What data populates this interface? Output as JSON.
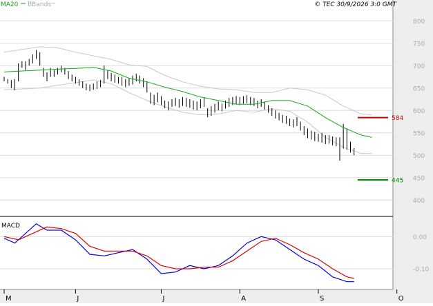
{
  "header": {
    "ma_label": "MA20",
    "bb_label": "BBands",
    "copyright": "© TEC 30/9/2026 3:0 GMT"
  },
  "colors": {
    "ma20": "#11aa11",
    "bbands": "#c8c8c8",
    "price": "#000000",
    "macd_line": "#0000dd",
    "signal_line": "#dd0000",
    "resistance": "#cc0000",
    "support": "#008800",
    "axis_panel": "#eeeeee",
    "grid": "#dddddd"
  },
  "chart_data": [
    {
      "type": "line",
      "panel": "price",
      "title": "",
      "ylim": [
        385,
        825
      ],
      "yticks": [
        "400",
        "450",
        "500",
        "550",
        "600",
        "650",
        "700",
        "750",
        "800"
      ],
      "x_month_labels": [
        "M",
        "J",
        "J",
        "A",
        "S",
        "O"
      ],
      "x_month_positions": [
        0,
        20,
        44,
        66,
        88,
        110
      ],
      "levels": [
        {
          "label": "584",
          "value": 584,
          "color": "resistance"
        },
        {
          "label": "445",
          "value": 445,
          "color": "support"
        }
      ],
      "series": [
        {
          "name": "MA20",
          "color": "ma20",
          "values": [
            [
              0,
              686
            ],
            [
              5,
              688
            ],
            [
              10,
              690
            ],
            [
              15,
              692
            ],
            [
              20,
              694
            ],
            [
              25,
              696
            ],
            [
              30,
              688
            ],
            [
              35,
              672
            ],
            [
              40,
              664
            ],
            [
              45,
              652
            ],
            [
              50,
              642
            ],
            [
              55,
              630
            ],
            [
              60,
              622
            ],
            [
              65,
              614
            ],
            [
              70,
              614
            ],
            [
              75,
              622
            ],
            [
              80,
              622
            ],
            [
              85,
              610
            ],
            [
              90,
              584
            ],
            [
              95,
              562
            ],
            [
              100,
              545
            ],
            [
              103,
              540
            ]
          ]
        },
        {
          "name": "BBands upper",
          "color": "bbands",
          "values": [
            [
              0,
              730
            ],
            [
              5,
              736
            ],
            [
              10,
              742
            ],
            [
              15,
              740
            ],
            [
              20,
              730
            ],
            [
              25,
              722
            ],
            [
              30,
              714
            ],
            [
              35,
              702
            ],
            [
              40,
              698
            ],
            [
              45,
              678
            ],
            [
              50,
              664
            ],
            [
              55,
              654
            ],
            [
              60,
              648
            ],
            [
              65,
              646
            ],
            [
              70,
              640
            ],
            [
              75,
              640
            ],
            [
              80,
              650
            ],
            [
              85,
              646
            ],
            [
              90,
              634
            ],
            [
              95,
              610
            ],
            [
              100,
              592
            ],
            [
              103,
              590
            ]
          ]
        },
        {
          "name": "BBands lower",
          "color": "bbands",
          "values": [
            [
              0,
              646
            ],
            [
              5,
              648
            ],
            [
              10,
              650
            ],
            [
              15,
              656
            ],
            [
              20,
              662
            ],
            [
              25,
              668
            ],
            [
              30,
              660
            ],
            [
              35,
              640
            ],
            [
              40,
              622
            ],
            [
              45,
              608
            ],
            [
              50,
              596
            ],
            [
              55,
              590
            ],
            [
              60,
              592
            ],
            [
              65,
              600
            ],
            [
              70,
              596
            ],
            [
              75,
              604
            ],
            [
              80,
              598
            ],
            [
              85,
              574
            ],
            [
              90,
              540
            ],
            [
              95,
              518
            ],
            [
              100,
              504
            ],
            [
              103,
              504
            ]
          ]
        }
      ],
      "ohlc": [
        [
          0,
          675,
          665
        ],
        [
          1,
          670,
          660
        ],
        [
          2,
          668,
          650
        ],
        [
          3,
          670,
          645
        ],
        [
          4,
          705,
          665
        ],
        [
          5,
          710,
          695
        ],
        [
          6,
          710,
          690
        ],
        [
          7,
          715,
          700
        ],
        [
          8,
          725,
          705
        ],
        [
          9,
          735,
          715
        ],
        [
          10,
          730,
          700
        ],
        [
          11,
          695,
          675
        ],
        [
          12,
          685,
          665
        ],
        [
          13,
          695,
          675
        ],
        [
          14,
          690,
          675
        ],
        [
          15,
          695,
          680
        ],
        [
          16,
          700,
          685
        ],
        [
          17,
          695,
          680
        ],
        [
          18,
          688,
          670
        ],
        [
          19,
          680,
          665
        ],
        [
          20,
          675,
          660
        ],
        [
          21,
          670,
          655
        ],
        [
          22,
          665,
          650
        ],
        [
          23,
          660,
          645
        ],
        [
          24,
          658,
          643
        ],
        [
          25,
          660,
          646
        ],
        [
          26,
          665,
          648
        ],
        [
          27,
          668,
          652
        ],
        [
          28,
          700,
          660
        ],
        [
          29,
          690,
          670
        ],
        [
          30,
          684,
          665
        ],
        [
          31,
          680,
          662
        ],
        [
          32,
          675,
          660
        ],
        [
          33,
          675,
          655
        ],
        [
          34,
          670,
          652
        ],
        [
          35,
          672,
          655
        ],
        [
          36,
          678,
          658
        ],
        [
          37,
          682,
          665
        ],
        [
          38,
          678,
          660
        ],
        [
          39,
          672,
          652
        ],
        [
          40,
          665,
          640
        ],
        [
          41,
          640,
          615
        ],
        [
          42,
          635,
          612
        ],
        [
          43,
          640,
          618
        ],
        [
          44,
          632,
          612
        ],
        [
          45,
          622,
          605
        ],
        [
          46,
          620,
          600
        ],
        [
          47,
          625,
          608
        ],
        [
          48,
          628,
          610
        ],
        [
          49,
          625,
          606
        ],
        [
          50,
          630,
          610
        ],
        [
          51,
          628,
          608
        ],
        [
          52,
          625,
          606
        ],
        [
          53,
          622,
          602
        ],
        [
          54,
          620,
          600
        ],
        [
          55,
          625,
          605
        ],
        [
          56,
          630,
          608
        ],
        [
          57,
          605,
          585
        ],
        [
          58,
          610,
          588
        ],
        [
          59,
          615,
          595
        ],
        [
          60,
          620,
          600
        ],
        [
          61,
          615,
          598
        ],
        [
          62,
          622,
          604
        ],
        [
          63,
          628,
          608
        ],
        [
          64,
          630,
          612
        ],
        [
          65,
          632,
          614
        ],
        [
          66,
          630,
          612
        ],
        [
          67,
          632,
          615
        ],
        [
          68,
          634,
          616
        ],
        [
          69,
          630,
          612
        ],
        [
          70,
          628,
          610
        ],
        [
          71,
          622,
          605
        ],
        [
          72,
          625,
          608
        ],
        [
          73,
          620,
          602
        ],
        [
          74,
          612,
          595
        ],
        [
          75,
          605,
          588
        ],
        [
          76,
          600,
          582
        ],
        [
          77,
          595,
          578
        ],
        [
          78,
          590,
          572
        ],
        [
          79,
          588,
          570
        ],
        [
          80,
          582,
          565
        ],
        [
          81,
          580,
          562
        ],
        [
          82,
          585,
          565
        ],
        [
          83,
          575,
          555
        ],
        [
          84,
          565,
          545
        ],
        [
          85,
          560,
          538
        ],
        [
          86,
          555,
          535
        ],
        [
          87,
          552,
          532
        ],
        [
          88,
          548,
          530
        ],
        [
          89,
          550,
          528
        ],
        [
          90,
          545,
          525
        ],
        [
          91,
          545,
          526
        ],
        [
          92,
          542,
          522
        ],
        [
          93,
          540,
          520
        ],
        [
          94,
          540,
          488
        ],
        [
          95,
          570,
          515
        ],
        [
          96,
          560,
          512
        ],
        [
          97,
          530,
          506
        ],
        [
          98,
          516,
          500
        ]
      ]
    },
    {
      "type": "line",
      "panel": "macd",
      "title": "MACD",
      "ylim": [
        -0.16,
        0.05
      ],
      "yticks": [
        "0.00",
        "-0.10"
      ],
      "ytick_values": [
        0.0,
        -0.1
      ],
      "series": [
        {
          "name": "MACD",
          "color": "macd_line",
          "values": [
            [
              0,
              -0.005
            ],
            [
              3,
              -0.02
            ],
            [
              6,
              0.01
            ],
            [
              9,
              0.04
            ],
            [
              12,
              0.02
            ],
            [
              16,
              0.02
            ],
            [
              20,
              -0.01
            ],
            [
              24,
              -0.055
            ],
            [
              28,
              -0.06
            ],
            [
              32,
              -0.05
            ],
            [
              36,
              -0.04
            ],
            [
              40,
              -0.07
            ],
            [
              44,
              -0.115
            ],
            [
              48,
              -0.11
            ],
            [
              52,
              -0.09
            ],
            [
              56,
              -0.1
            ],
            [
              60,
              -0.09
            ],
            [
              64,
              -0.06
            ],
            [
              68,
              -0.02
            ],
            [
              72,
              0.0
            ],
            [
              76,
              -0.01
            ],
            [
              80,
              -0.04
            ],
            [
              84,
              -0.07
            ],
            [
              88,
              -0.09
            ],
            [
              92,
              -0.125
            ],
            [
              96,
              -0.14
            ],
            [
              98,
              -0.14
            ]
          ]
        },
        {
          "name": "Signal",
          "color": "signal_line",
          "values": [
            [
              0,
              0.0
            ],
            [
              4,
              -0.01
            ],
            [
              8,
              0.01
            ],
            [
              12,
              0.03
            ],
            [
              16,
              0.025
            ],
            [
              20,
              0.01
            ],
            [
              24,
              -0.03
            ],
            [
              28,
              -0.045
            ],
            [
              32,
              -0.045
            ],
            [
              36,
              -0.045
            ],
            [
              40,
              -0.06
            ],
            [
              44,
              -0.09
            ],
            [
              48,
              -0.1
            ],
            [
              52,
              -0.1
            ],
            [
              56,
              -0.095
            ],
            [
              60,
              -0.095
            ],
            [
              64,
              -0.075
            ],
            [
              68,
              -0.045
            ],
            [
              72,
              -0.015
            ],
            [
              76,
              -0.005
            ],
            [
              80,
              -0.025
            ],
            [
              84,
              -0.05
            ],
            [
              88,
              -0.07
            ],
            [
              92,
              -0.1
            ],
            [
              96,
              -0.125
            ],
            [
              98,
              -0.13
            ]
          ]
        }
      ]
    }
  ]
}
